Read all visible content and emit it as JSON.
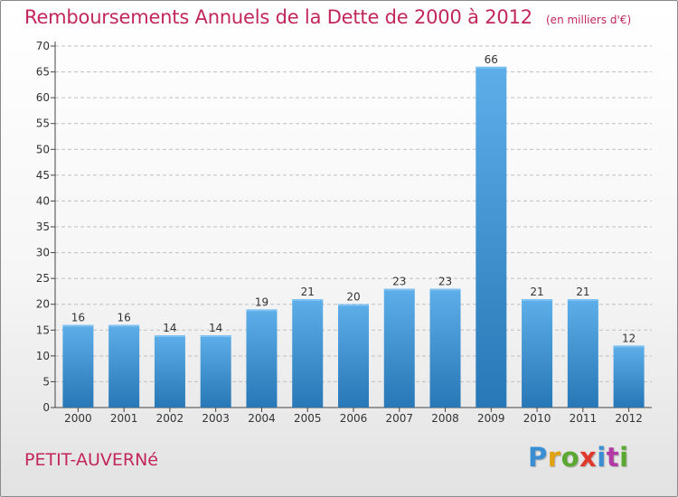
{
  "title": "Remboursements Annuels de la Dette de 2000 à 2012",
  "subtitle": "(en milliers d'€)",
  "place": "PETIT-AUVERNé",
  "brand": {
    "text": "Proxiti",
    "letter_colors": [
      "#3a8fd4",
      "#e2a20f",
      "#5aa832",
      "#e03a2f",
      "#3a8fd4",
      "#b23aa4",
      "#5aa832"
    ]
  },
  "colors": {
    "title": "#c2265a",
    "bar_top": "#5daee9",
    "bar_bottom": "#2877b6",
    "grid": "#bfbfbf"
  },
  "chart_data": {
    "type": "bar",
    "categories": [
      "2000",
      "2001",
      "2002",
      "2003",
      "2004",
      "2005",
      "2006",
      "2007",
      "2008",
      "2009",
      "2010",
      "2011",
      "2012"
    ],
    "values": [
      16,
      16,
      14,
      14,
      19,
      21,
      20,
      23,
      23,
      66,
      21,
      21,
      12
    ],
    "data_labels": [
      "16",
      "16",
      "14",
      "14",
      "19",
      "21",
      "20",
      "23",
      "23",
      "66",
      "21",
      "21",
      "12"
    ],
    "ylim": [
      0,
      70
    ],
    "yticks": [
      0,
      5,
      10,
      15,
      20,
      25,
      30,
      35,
      40,
      45,
      50,
      55,
      60,
      65,
      70
    ],
    "ytick_labels": [
      "0",
      "5",
      "10",
      "15",
      "20",
      "25",
      "30",
      "35",
      "40",
      "45",
      "50",
      "55",
      "60",
      "65",
      "70"
    ],
    "grid": true,
    "xlabel": "",
    "ylabel": ""
  }
}
